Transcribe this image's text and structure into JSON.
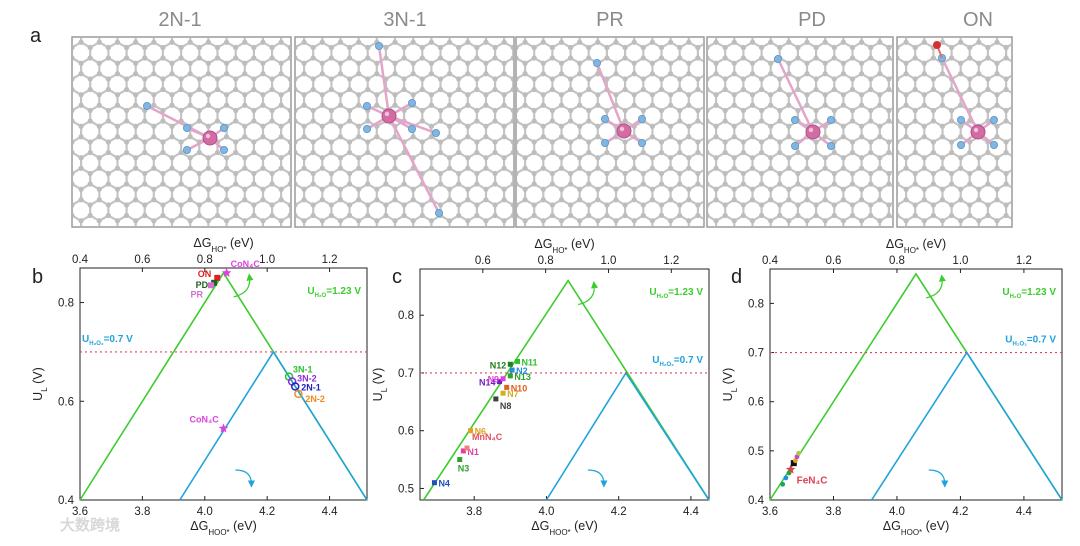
{
  "figure_letter_a": "a",
  "structures": [
    "2N-1",
    "3N-1",
    "PR",
    "PD",
    "ON"
  ],
  "colors": {
    "green": "#3dcc2f",
    "blue": "#1fa3dc",
    "red_dashed": "#e0445a",
    "carbon": "#b4b4b4",
    "nitrogen": "#7fb6e2",
    "metal": "#d46ca4",
    "oxygen": "#d63030"
  },
  "chart_data": [
    {
      "type": "scatter",
      "panel": "b",
      "top_axis_label": "ΔG",
      "top_axis_sub": "HO*",
      "top_axis_unit": " (eV)",
      "top_ticks": [
        "0.4",
        "0.6",
        "0.8",
        "1.0",
        "1.2"
      ],
      "top_tick_values": [
        0.4,
        0.6,
        0.8,
        1.0,
        1.2
      ],
      "xlim_top": [
        0.4,
        1.32
      ],
      "bottom_axis_label": "ΔG",
      "bottom_axis_sub": "HOO*",
      "bottom_axis_unit": " (eV)",
      "bottom_ticks": [
        "3.6",
        "3.8",
        "4.0",
        "4.2",
        "4.4"
      ],
      "bottom_tick_values": [
        3.6,
        3.8,
        4.0,
        4.2,
        4.4
      ],
      "xlim": [
        3.6,
        4.52
      ],
      "ylabel": "U",
      "ylabel_sub": "L",
      "ylabel_unit": " (V)",
      "y_ticks": [
        "0.4",
        "0.6",
        "0.8"
      ],
      "y_tick_values": [
        0.4,
        0.6,
        0.8
      ],
      "ylim": [
        0.4,
        0.87
      ],
      "green_label": "U",
      "green_label_sub": "H₂O",
      "green_label_value": "=1.23 V",
      "blue_label": "U",
      "blue_label_sub": "H₂O₂",
      "blue_label_value": "=0.7 V",
      "green_peak": [
        4.06,
        0.86
      ],
      "blue_peak": [
        4.22,
        0.7
      ],
      "green_left": [
        3.6,
        0.4
      ],
      "green_right": [
        4.52,
        0.4
      ],
      "blue_left": [
        3.92,
        0.4
      ],
      "blue_right": [
        4.52,
        0.4
      ],
      "dashed_y": 0.7,
      "points": [
        {
          "label": "CoN₄C",
          "x": 4.07,
          "y": 0.86,
          "color": "#e040e0",
          "marker": "star"
        },
        {
          "label": "ON",
          "x": 4.04,
          "y": 0.85,
          "color": "#e02020",
          "marker": "square"
        },
        {
          "label": "PD",
          "x": 4.03,
          "y": 0.84,
          "color": "#206020",
          "marker": "square"
        },
        {
          "label": "PR",
          "x": 4.02,
          "y": 0.835,
          "color": "#d070d0",
          "marker": "square"
        },
        {
          "label": "3N-1",
          "x": 4.27,
          "y": 0.65,
          "color": "#30c030",
          "marker": "circle"
        },
        {
          "label": "3N-2",
          "x": 4.28,
          "y": 0.64,
          "color": "#8a2be2",
          "marker": "circle"
        },
        {
          "label": "2N-1",
          "x": 4.29,
          "y": 0.63,
          "color": "#2020c0",
          "marker": "circle"
        },
        {
          "label": "2N-2",
          "x": 4.3,
          "y": 0.615,
          "color": "#f08a20",
          "marker": "circle"
        },
        {
          "label": "CoN₄C",
          "x": 4.06,
          "y": 0.545,
          "color": "#e040e0",
          "marker": "star"
        }
      ]
    },
    {
      "type": "scatter",
      "panel": "c",
      "top_axis_label": "ΔG",
      "top_axis_sub": "HO*",
      "top_axis_unit": " (eV)",
      "top_ticks": [
        "0.6",
        "0.8",
        "1.0",
        "1.2"
      ],
      "top_tick_values": [
        0.6,
        0.8,
        1.0,
        1.2
      ],
      "xlim_top": [
        0.4,
        1.32
      ],
      "bottom_axis_label": "ΔG",
      "bottom_axis_sub": "HOO*",
      "bottom_axis_unit": " (eV)",
      "bottom_ticks": [
        "3.8",
        "4.0",
        "4.2",
        "4.4"
      ],
      "bottom_tick_values": [
        3.8,
        4.0,
        4.2,
        4.4
      ],
      "xlim": [
        3.65,
        4.45
      ],
      "ylabel": "U",
      "ylabel_sub": "L",
      "ylabel_unit": " (V)",
      "y_ticks": [
        "0.5",
        "0.6",
        "0.7",
        "0.8"
      ],
      "y_tick_values": [
        0.5,
        0.6,
        0.7,
        0.8
      ],
      "ylim": [
        0.48,
        0.88
      ],
      "green_label": "U",
      "green_label_sub": "H₂O",
      "green_label_value": "=1.23 V",
      "blue_label": "U",
      "blue_label_sub": "H₂O₂",
      "blue_label_value": "=0.7 V",
      "green_peak": [
        4.06,
        0.86
      ],
      "blue_peak": [
        4.22,
        0.7
      ],
      "green_left": [
        3.66,
        0.48
      ],
      "green_right": [
        4.45,
        0.48
      ],
      "blue_left": [
        4.0,
        0.48
      ],
      "blue_right": [
        4.45,
        0.48
      ],
      "dashed_y": 0.7,
      "points": [
        {
          "label": "N4",
          "x": 3.69,
          "y": 0.51,
          "color": "#2050c0"
        },
        {
          "label": "N3",
          "x": 3.76,
          "y": 0.55,
          "color": "#30a030"
        },
        {
          "label": "N1",
          "x": 3.77,
          "y": 0.565,
          "color": "#e040a0"
        },
        {
          "label": "MnN₄C",
          "x": 3.78,
          "y": 0.57,
          "color": "#f08080"
        },
        {
          "label": "N6",
          "x": 3.79,
          "y": 0.6,
          "color": "#e0a020"
        },
        {
          "label": "N8",
          "x": 3.86,
          "y": 0.655,
          "color": "#404040"
        },
        {
          "label": "N7",
          "x": 3.88,
          "y": 0.665,
          "color": "#d0b020"
        },
        {
          "label": "N10",
          "x": 3.89,
          "y": 0.675,
          "color": "#e06020"
        },
        {
          "label": "N14",
          "x": 3.87,
          "y": 0.685,
          "color": "#7020c0"
        },
        {
          "label": "N9",
          "x": 3.88,
          "y": 0.69,
          "color": "#e040e0"
        },
        {
          "label": "N13",
          "x": 3.9,
          "y": 0.695,
          "color": "#30a030"
        },
        {
          "label": "N2",
          "x": 3.905,
          "y": 0.705,
          "color": "#2090e0"
        },
        {
          "label": "N12",
          "x": 3.9,
          "y": 0.715,
          "color": "#208020"
        },
        {
          "label": "N11",
          "x": 3.92,
          "y": 0.72,
          "color": "#30c030"
        }
      ]
    },
    {
      "type": "scatter",
      "panel": "d",
      "top_axis_label": "ΔG",
      "top_axis_sub": "HO*",
      "top_axis_unit": " (eV)",
      "top_ticks": [
        "0.4",
        "0.6",
        "0.8",
        "1.0",
        "1.2"
      ],
      "top_tick_values": [
        0.4,
        0.6,
        0.8,
        1.0,
        1.2
      ],
      "xlim_top": [
        0.4,
        1.32
      ],
      "bottom_axis_label": "ΔG",
      "bottom_axis_sub": "HOO*",
      "bottom_axis_unit": " (eV)",
      "bottom_ticks": [
        "3.6",
        "3.8",
        "4.0",
        "4.2",
        "4.4"
      ],
      "bottom_tick_values": [
        3.6,
        3.8,
        4.0,
        4.2,
        4.4
      ],
      "xlim": [
        3.6,
        4.52
      ],
      "ylabel": "U",
      "ylabel_sub": "L",
      "ylabel_unit": " (V)",
      "y_ticks": [
        "0.4",
        "0.5",
        "0.6",
        "0.7",
        "0.8"
      ],
      "y_tick_values": [
        0.4,
        0.5,
        0.6,
        0.7,
        0.8
      ],
      "ylim": [
        0.4,
        0.87
      ],
      "green_label": "U",
      "green_label_sub": "H₂O",
      "green_label_value": "=1.23 V",
      "blue_label": "U",
      "blue_label_sub": "H₂O₂",
      "blue_label_value": "=0.7 V",
      "green_peak": [
        4.06,
        0.86
      ],
      "blue_peak": [
        4.22,
        0.7
      ],
      "green_left": [
        3.6,
        0.4
      ],
      "green_right": [
        4.52,
        0.4
      ],
      "blue_left": [
        3.92,
        0.4
      ],
      "blue_right": [
        4.52,
        0.4
      ],
      "dashed_y": 0.7,
      "points": [
        {
          "label": "FeN₄C",
          "x": 3.665,
          "y": 0.462,
          "color": "#e04050",
          "marker": "star"
        },
        {
          "label": "",
          "x": 3.675,
          "y": 0.475,
          "color": "#101010",
          "marker": "square"
        },
        {
          "label": "",
          "x": 3.68,
          "y": 0.48,
          "color": "#e0a020",
          "marker": "circle"
        },
        {
          "label": "",
          "x": 3.685,
          "y": 0.488,
          "color": "#d040d0",
          "marker": "circle"
        },
        {
          "label": "",
          "x": 3.69,
          "y": 0.495,
          "color": "#a0d040",
          "marker": "circle"
        },
        {
          "label": "",
          "x": 3.66,
          "y": 0.455,
          "color": "#30a030",
          "marker": "circle"
        },
        {
          "label": "",
          "x": 3.65,
          "y": 0.445,
          "color": "#2090e0",
          "marker": "circle"
        },
        {
          "label": "",
          "x": 3.64,
          "y": 0.432,
          "color": "#20a060",
          "marker": "circle"
        }
      ]
    }
  ],
  "watermark": "大数跨境"
}
